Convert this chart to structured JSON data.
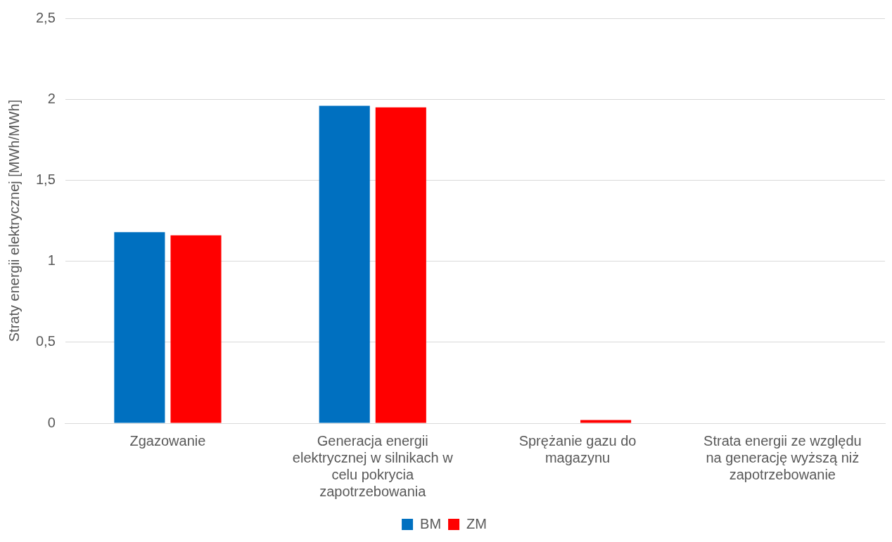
{
  "chart_data": {
    "type": "bar",
    "ylabel": "Straty energii elektrycznej [MWh/MWh]",
    "categories": [
      "Zgazowanie",
      "Generacja energii elektrycznej w silnikach w celu pokrycia zapotrzebowania",
      "Sprężanie gazu do magazynu",
      "Strata energii ze względu na generację wyższą niż zapotrzebowanie"
    ],
    "series": [
      {
        "name": "BM",
        "color": "#0070c0",
        "values": [
          1.18,
          1.96,
          0,
          0
        ]
      },
      {
        "name": "ZM",
        "color": "#ff0000",
        "values": [
          1.16,
          1.95,
          0.02,
          0
        ]
      }
    ],
    "ylim": [
      0,
      2.5
    ],
    "yticks": [
      0,
      {
        "value": 0.5,
        "label": "0,5"
      },
      1,
      {
        "value": 1.5,
        "label": "1,5"
      },
      2,
      {
        "value": 2.5,
        "label": "2,5"
      }
    ],
    "grid": "y",
    "legend": "bottom"
  }
}
